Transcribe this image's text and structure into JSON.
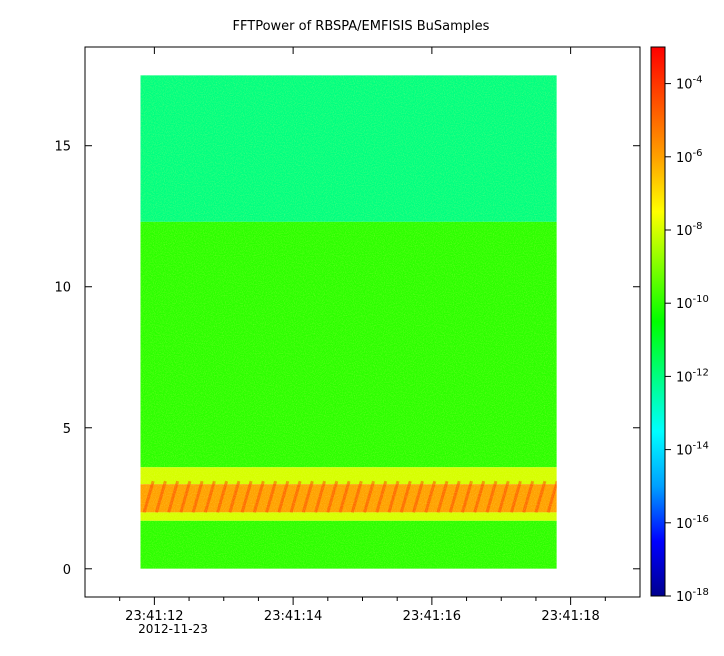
{
  "chart_data": {
    "type": "heatmap",
    "title": "FFTPower of RBSPA/EMFISIS  BuSamples",
    "xlabel": "",
    "ylabel": "",
    "x_range": [
      "23:41:11.0",
      "23:41:19.0"
    ],
    "data_x_range": [
      "23:41:11.8",
      "23:41:17.8"
    ],
    "x_ticks": [
      {
        "value": "23:41:12",
        "label": "23:41:12"
      },
      {
        "value": "23:41:14",
        "label": "23:41:14"
      },
      {
        "value": "23:41:16",
        "label": "23:41:16"
      },
      {
        "value": "23:41:18",
        "label": "23:41:18"
      }
    ],
    "x_minor_ticks": [
      "23:41:11.5",
      "23:41:12.5",
      "23:41:13.0",
      "23:41:13.5",
      "23:41:14.5",
      "23:41:15.0",
      "23:41:15.5",
      "23:41:16.5",
      "23:41:17.0",
      "23:41:17.5",
      "23:41:18.5"
    ],
    "date_label": "2012-11-23",
    "ylim": [
      -1,
      18.5
    ],
    "data_y_range": [
      0,
      17.5
    ],
    "y_ticks": [
      0,
      5,
      10,
      15
    ],
    "colorbar": {
      "scale": "log",
      "range": [
        1e-18,
        0.001
      ],
      "ticks": [
        {
          "value": 0.0001,
          "base": "10",
          "exp": "-4"
        },
        {
          "value": 1e-06,
          "base": "10",
          "exp": "-6"
        },
        {
          "value": 1e-08,
          "base": "10",
          "exp": "-8"
        },
        {
          "value": 1e-10,
          "base": "10",
          "exp": "-10"
        },
        {
          "value": 1e-12,
          "base": "10",
          "exp": "-12"
        },
        {
          "value": 1e-14,
          "base": "10",
          "exp": "-14"
        },
        {
          "value": 1e-16,
          "base": "10",
          "exp": "-16"
        },
        {
          "value": 1e-18,
          "base": "10",
          "exp": "-18"
        }
      ],
      "colors": [
        "#00008f",
        "#0000ff",
        "#00a0ff",
        "#00ffff",
        "#00ff80",
        "#00ff00",
        "#80ff00",
        "#ffff00",
        "#ffa000",
        "#ff5000",
        "#ff0000"
      ]
    },
    "regions": [
      {
        "y": [
          12.3,
          17.5
        ],
        "level": 1e-12
      },
      {
        "y": [
          3.6,
          12.3
        ],
        "level": 1e-10
      },
      {
        "y": [
          3.0,
          3.6
        ],
        "level": 1e-08
      },
      {
        "y": [
          2.0,
          3.0
        ],
        "level": 1e-06
      },
      {
        "y": [
          1.7,
          2.0
        ],
        "level": 1e-08
      },
      {
        "y": [
          0,
          1.7
        ],
        "level": 1e-10
      }
    ]
  }
}
